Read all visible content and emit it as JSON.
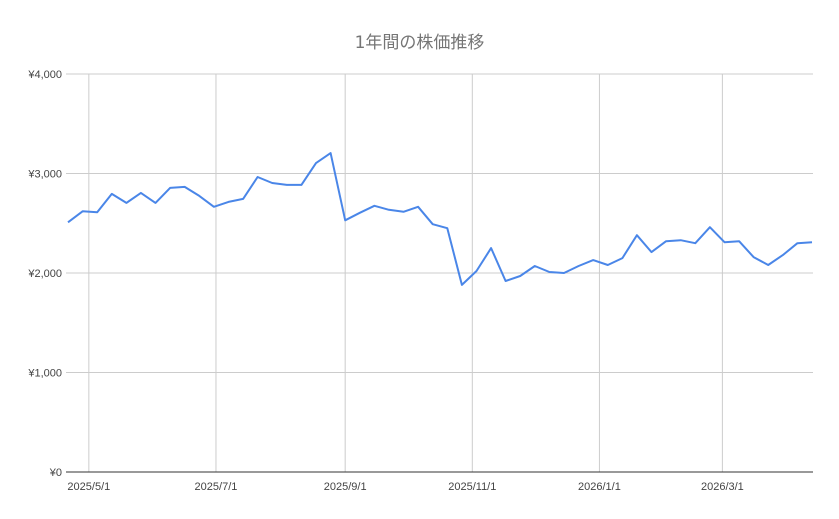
{
  "chart_data": {
    "type": "line",
    "title": "1年間の株価推移",
    "xlabel": "",
    "ylabel": "",
    "ylim": [
      0,
      4000
    ],
    "y_ticks": [
      "¥0",
      "¥1,000",
      "¥2,000",
      "¥3,000",
      "¥4,000"
    ],
    "y_tick_values": [
      0,
      1000,
      2000,
      3000,
      4000
    ],
    "x_ticks": [
      "2025/5/1",
      "2025/7/1",
      "2025/9/1",
      "2025/11/1",
      "2026/1/1",
      "2026/3/1"
    ],
    "x_tick_dates": [
      "2025-05-01",
      "2025-07-01",
      "2025-09-01",
      "2025-11-01",
      "2026-01-01",
      "2026-03-01"
    ],
    "xlim": [
      "2025-04-21",
      "2026-04-13"
    ],
    "grid": true,
    "line_color": "#4a86e8",
    "x": [
      "2025-04-21",
      "2025-04-28",
      "2025-05-05",
      "2025-05-12",
      "2025-05-19",
      "2025-05-26",
      "2025-06-02",
      "2025-06-09",
      "2025-06-16",
      "2025-06-23",
      "2025-06-30",
      "2025-07-07",
      "2025-07-14",
      "2025-07-21",
      "2025-07-28",
      "2025-08-04",
      "2025-08-11",
      "2025-08-18",
      "2025-08-25",
      "2025-09-01",
      "2025-09-08",
      "2025-09-15",
      "2025-09-22",
      "2025-09-29",
      "2025-10-06",
      "2025-10-13",
      "2025-10-20",
      "2025-10-27",
      "2025-11-03",
      "2025-11-10",
      "2025-11-17",
      "2025-11-24",
      "2025-12-01",
      "2025-12-08",
      "2025-12-15",
      "2025-12-22",
      "2025-12-29",
      "2026-01-05",
      "2026-01-12",
      "2026-01-19",
      "2026-01-26",
      "2026-02-02",
      "2026-02-09",
      "2026-02-16",
      "2026-02-23",
      "2026-03-02",
      "2026-03-09",
      "2026-03-16",
      "2026-03-23",
      "2026-03-30",
      "2026-04-06",
      "2026-04-13"
    ],
    "series": [
      {
        "values": [
          2510,
          2620,
          2610,
          2795,
          2705,
          2805,
          2705,
          2855,
          2865,
          2775,
          2665,
          2715,
          2745,
          2965,
          2905,
          2885,
          2885,
          3105,
          3205,
          2530,
          2605,
          2675,
          2635,
          2615,
          2665,
          2490,
          2450,
          1880,
          2020,
          2250,
          1920,
          1970,
          2070,
          2010,
          2000,
          2070,
          2130,
          2080,
          2150,
          2380,
          2210,
          2320,
          2330,
          2300,
          2460,
          2310,
          2320,
          2160,
          2080,
          2180,
          2300,
          2310
        ]
      }
    ]
  }
}
